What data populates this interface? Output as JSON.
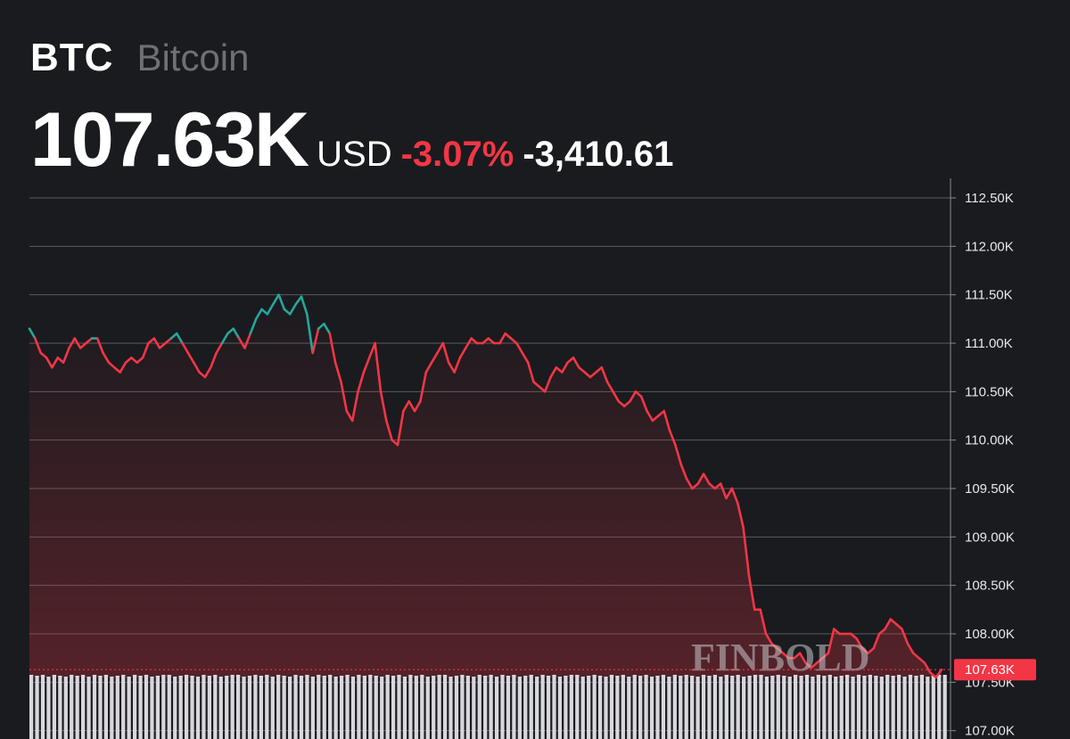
{
  "header": {
    "ticker": "BTC",
    "asset_name": "Bitcoin",
    "price": "107.63K",
    "currency": "USD",
    "change_pct": "-3.07%",
    "change_abs": "-3,410.61"
  },
  "watermark": "FINBOLD",
  "colors": {
    "background": "#1a1b1f",
    "up": "#26a69a",
    "down": "#f23645",
    "grid": "#5a5b60"
  },
  "chart_data": {
    "type": "line",
    "y_range": [
      107000,
      112750
    ],
    "y_ticks": [
      107000,
      107500,
      108000,
      108500,
      109000,
      109500,
      110000,
      110500,
      111000,
      111500,
      112000,
      112500
    ],
    "y_tick_labels": [
      "107.00K",
      "107.50K",
      "108.00K",
      "108.50K",
      "109.00K",
      "109.50K",
      "110.00K",
      "110.50K",
      "111.00K",
      "111.50K",
      "112.00K",
      "112.50K"
    ],
    "last_price": 107630,
    "last_price_label": "107.63K",
    "grid": true,
    "series": [
      {
        "values": [
          111150,
          111050,
          110900,
          110850,
          110750,
          110850,
          110800,
          110950,
          111050,
          110950,
          111000,
          111050,
          111050,
          110900,
          110800,
          110750,
          110700,
          110800,
          110850,
          110800,
          110850,
          111000,
          111050,
          110950,
          111000,
          111050,
          111100,
          111000,
          110900,
          110800,
          110700,
          110650,
          110750,
          110900,
          111000,
          111100,
          111150,
          111050,
          110950,
          111100,
          111250,
          111350,
          111300,
          111400,
          111500,
          111350,
          111300,
          111400,
          111480,
          111300,
          110900,
          111150,
          111200,
          111100,
          110800,
          110600,
          110300,
          110200,
          110500,
          110700,
          110850,
          111000,
          110500,
          110200,
          110000,
          109950,
          110300,
          110400,
          110300,
          110400,
          110700,
          110800,
          110900,
          111000,
          110800,
          110700,
          110850,
          110950,
          111050,
          111000,
          111000,
          111050,
          111000,
          111000,
          111100,
          111050,
          111000,
          110900,
          110800,
          110600,
          110550,
          110500,
          110650,
          110750,
          110700,
          110800,
          110850,
          110750,
          110700,
          110650,
          110700,
          110750,
          110600,
          110500,
          110400,
          110350,
          110400,
          110500,
          110450,
          110300,
          110200,
          110250,
          110300,
          110100,
          109950,
          109750,
          109600,
          109500,
          109550,
          109650,
          109550,
          109500,
          109550,
          109400,
          109500,
          109350,
          109100,
          108600,
          108250,
          108250,
          108000,
          107900,
          107850,
          107800,
          107750,
          107750,
          107800,
          107700,
          107650,
          107700,
          107750,
          107800,
          108050,
          108000,
          108000,
          108000,
          107950,
          107850,
          107800,
          107850,
          108000,
          108050,
          108150,
          108100,
          108050,
          107900,
          107800,
          107750,
          107700,
          107600,
          107550,
          107630
        ]
      }
    ],
    "volume": [
      72,
      71,
      72,
      70,
      72,
      71,
      70,
      72,
      71,
      72,
      70,
      72,
      71,
      72,
      70,
      71,
      72,
      70,
      72,
      71,
      72,
      70,
      71,
      72,
      72,
      70,
      71,
      72,
      71,
      70,
      72,
      71,
      72,
      70,
      71,
      72,
      72,
      70,
      71,
      72,
      71,
      72,
      70,
      72,
      71,
      70,
      72,
      71,
      72,
      70,
      72,
      71,
      72,
      70,
      71,
      72,
      70,
      72,
      71,
      72,
      71,
      70,
      72,
      71,
      72,
      70,
      72,
      71,
      72,
      70,
      71,
      72,
      72,
      70,
      71,
      72,
      71,
      70,
      72,
      71,
      72,
      70,
      72,
      71,
      72,
      70,
      71,
      72,
      70,
      72,
      71,
      72,
      70,
      71,
      72,
      72,
      70,
      71,
      72,
      71,
      70,
      72,
      71,
      72,
      70,
      72,
      71,
      72,
      70,
      71,
      72,
      70,
      72,
      71,
      72,
      71,
      70,
      72,
      71,
      72,
      70,
      72,
      71,
      72,
      70,
      71,
      72,
      72,
      70,
      71,
      72,
      71,
      70,
      72,
      71,
      72,
      70,
      72,
      71,
      72,
      70,
      71,
      72,
      70,
      72,
      71,
      72,
      71,
      70,
      72,
      71,
      72,
      70,
      72,
      71,
      72,
      70,
      71,
      72,
      72
    ]
  }
}
